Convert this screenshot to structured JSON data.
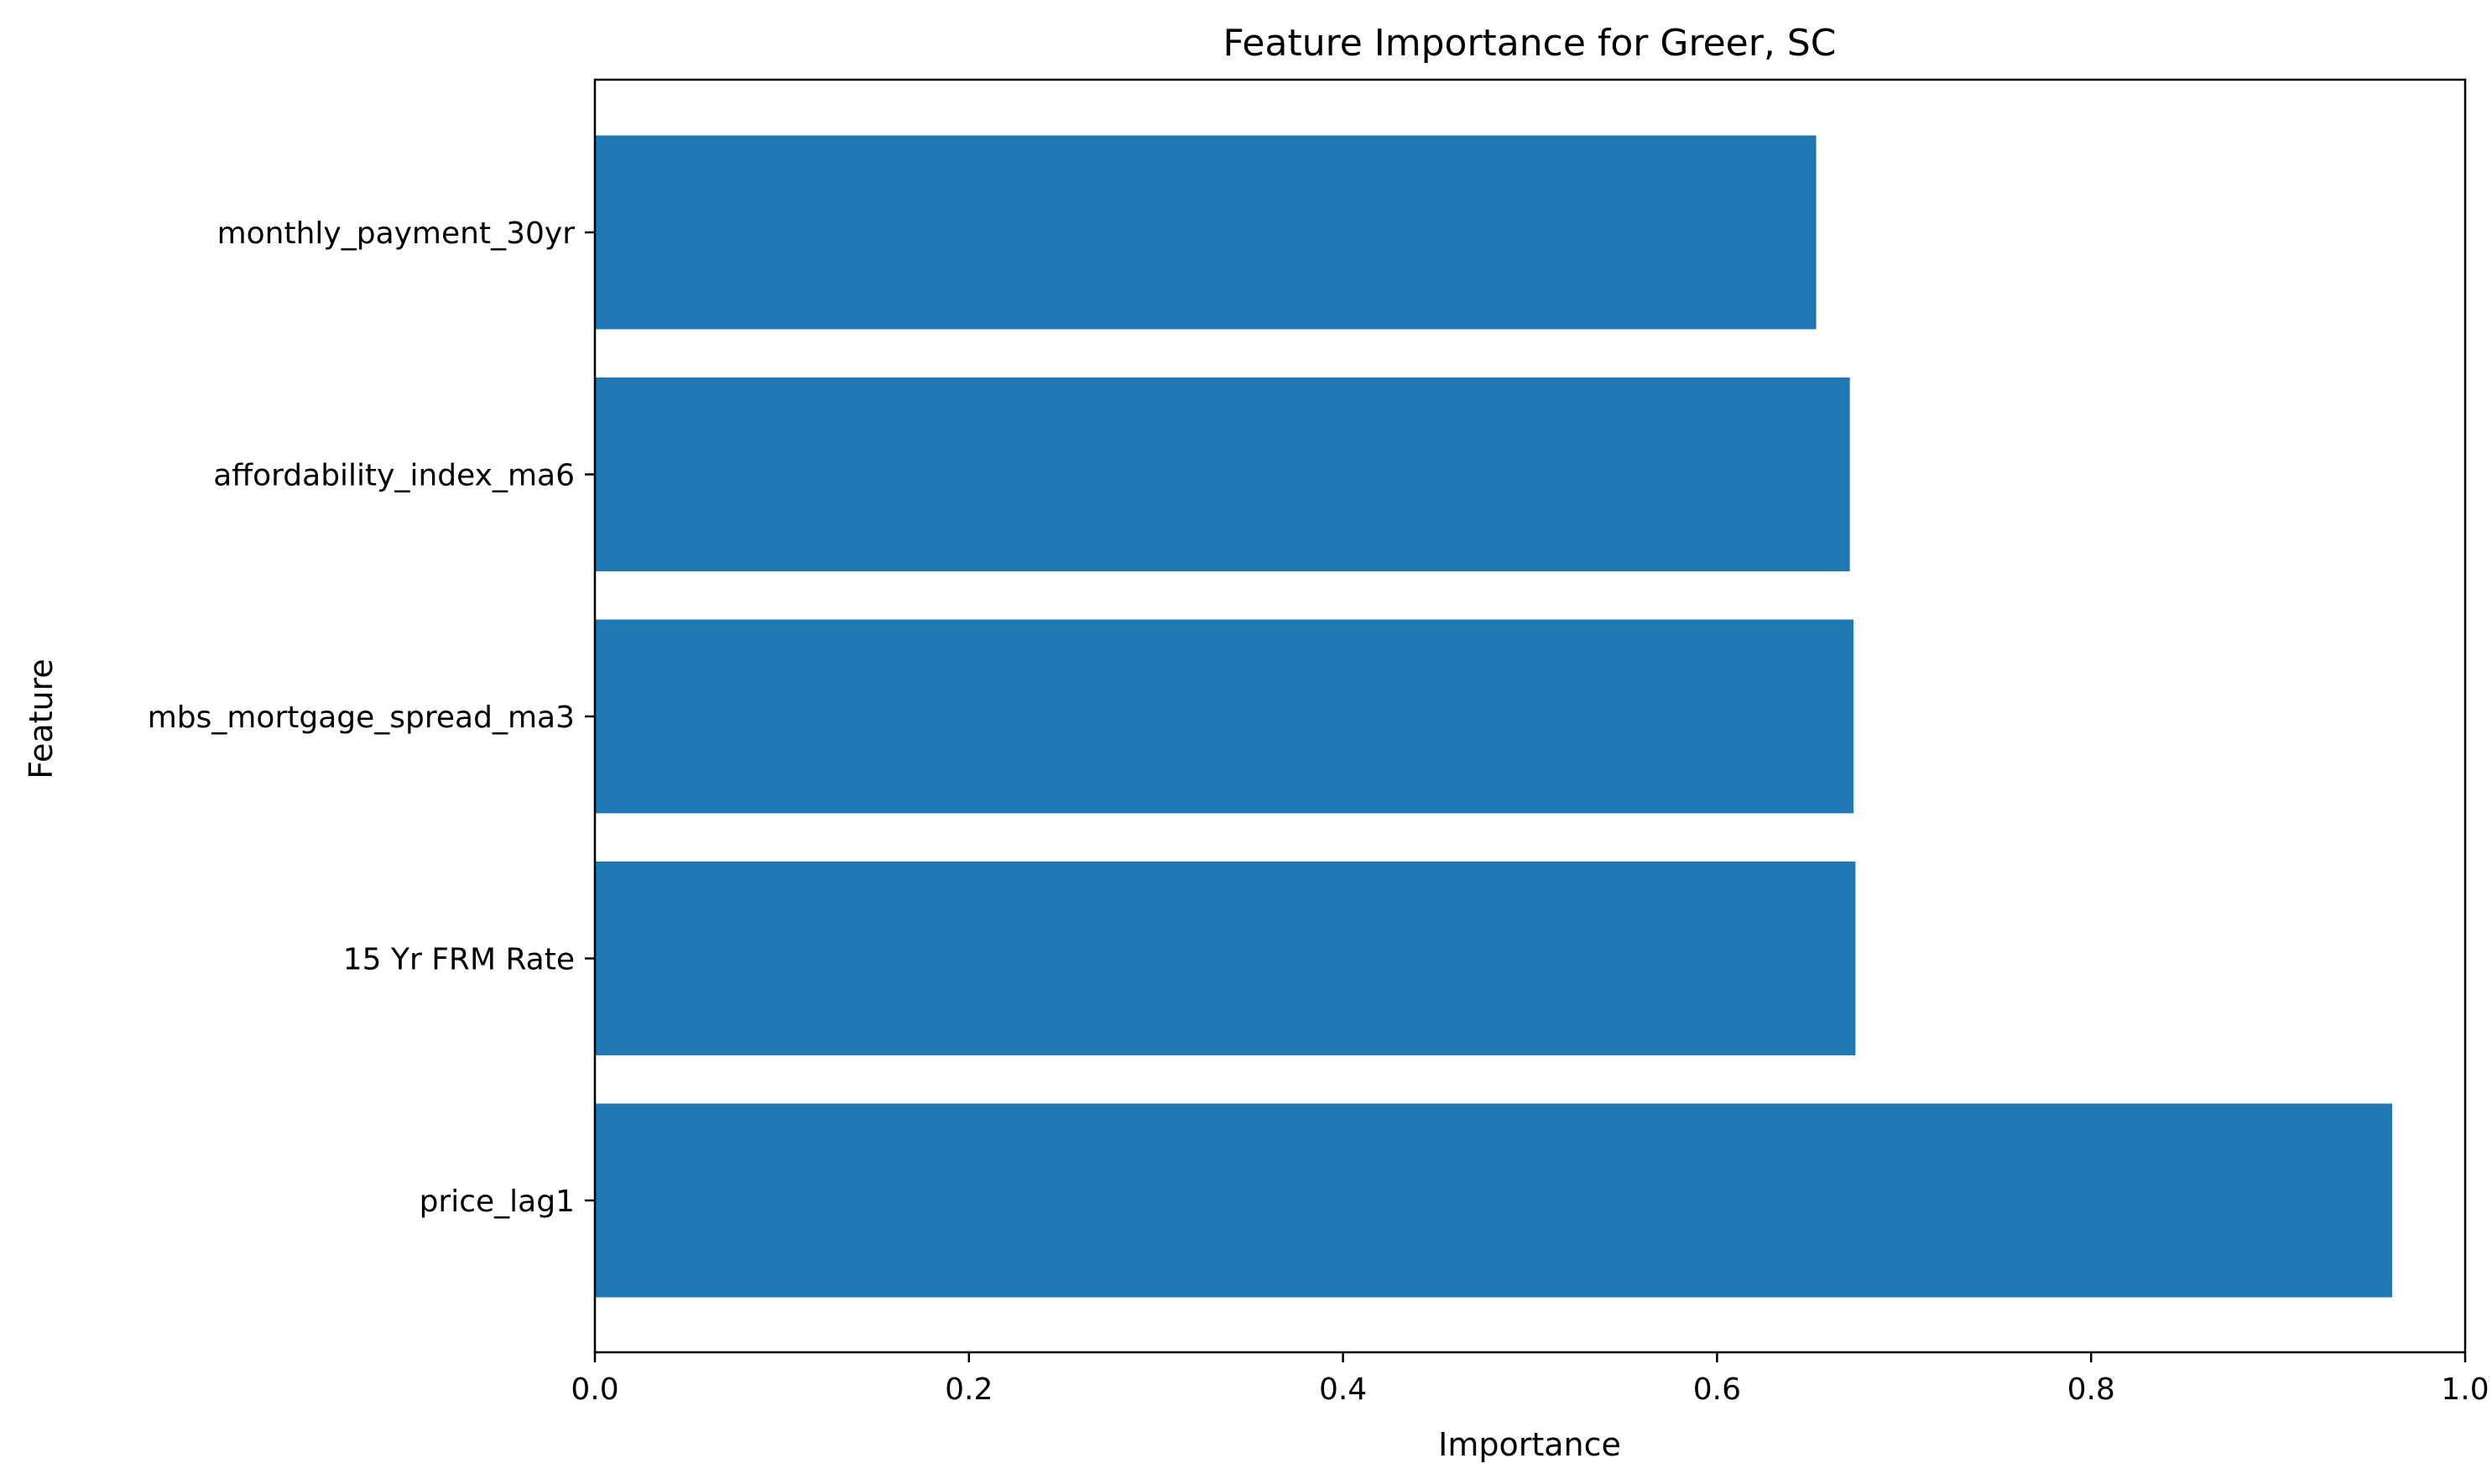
{
  "chart_data": {
    "type": "bar",
    "orientation": "horizontal",
    "title": "Feature Importance for Greer, SC",
    "xlabel": "Importance",
    "ylabel": "Feature",
    "categories": [
      "price_lag1",
      "15 Yr FRM Rate",
      "mbs_mortgage_spread_ma3",
      "affordability_index_ma6",
      "monthly_payment_30yr"
    ],
    "values": [
      0.961,
      0.674,
      0.673,
      0.671,
      0.653
    ],
    "xlim": [
      0,
      1.0
    ],
    "xticks": [
      "0.0",
      "0.2",
      "0.4",
      "0.6",
      "0.8",
      "1.0"
    ],
    "bar_color": "#1f77b4",
    "grid": false,
    "legend": "none"
  }
}
